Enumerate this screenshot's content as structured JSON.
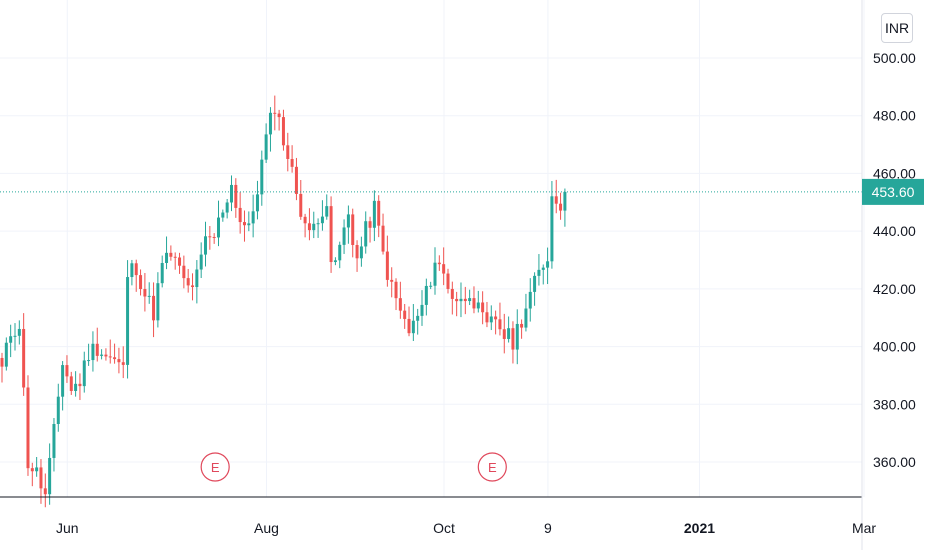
{
  "currency": "INR",
  "last_price_label": "453.60",
  "colors": {
    "up": "#26a69a",
    "down": "#ef5350",
    "grid": "#f0f3fa",
    "axis": "#131722",
    "event": "#e0485b"
  },
  "chart_data": {
    "type": "candlestick",
    "title": "",
    "xlabel": "",
    "ylabel": "",
    "ylim": [
      345,
      509
    ],
    "grid": true,
    "y_ticks": [
      "360.00",
      "380.00",
      "400.00",
      "420.00",
      "440.00",
      "460.00",
      "480.00",
      "500.00"
    ],
    "x_ticks": [
      {
        "label": "Jun",
        "index": 10,
        "bold": false
      },
      {
        "label": "Aug",
        "index": 56,
        "bold": false
      },
      {
        "label": "Oct",
        "index": 97,
        "bold": false
      },
      {
        "label": "9",
        "index": 121,
        "bold": false
      },
      {
        "label": "2021",
        "index": 156,
        "bold": true
      },
      {
        "label": "Mar",
        "index": 194,
        "bold": false
      }
    ],
    "last_price": 453.6,
    "events": [
      {
        "label": "E",
        "index": 49
      },
      {
        "label": "E",
        "index": 113
      }
    ],
    "anchors": [
      [
        0,
        392
      ],
      [
        2,
        405
      ],
      [
        4,
        408
      ],
      [
        6,
        360
      ],
      [
        8,
        356
      ],
      [
        10,
        348
      ],
      [
        12,
        370
      ],
      [
        14,
        395
      ],
      [
        16,
        385
      ],
      [
        18,
        388
      ],
      [
        20,
        398
      ],
      [
        22,
        400
      ],
      [
        24,
        397
      ],
      [
        26,
        395
      ],
      [
        28,
        392
      ],
      [
        29,
        425
      ],
      [
        31,
        428
      ],
      [
        33,
        418
      ],
      [
        35,
        412
      ],
      [
        37,
        428
      ],
      [
        39,
        432
      ],
      [
        41,
        426
      ],
      [
        43,
        420
      ],
      [
        45,
        424
      ],
      [
        47,
        436
      ],
      [
        49,
        438
      ],
      [
        51,
        448
      ],
      [
        53,
        456
      ],
      [
        55,
        444
      ],
      [
        57,
        440
      ],
      [
        59,
        455
      ],
      [
        61,
        472
      ],
      [
        63,
        484
      ],
      [
        65,
        472
      ],
      [
        67,
        460
      ],
      [
        69,
        448
      ],
      [
        71,
        438
      ],
      [
        73,
        446
      ],
      [
        75,
        450
      ],
      [
        76,
        426
      ],
      [
        78,
        434
      ],
      [
        80,
        446
      ],
      [
        82,
        430
      ],
      [
        84,
        440
      ],
      [
        86,
        448
      ],
      [
        88,
        432
      ],
      [
        90,
        420
      ],
      [
        92,
        412
      ],
      [
        94,
        405
      ],
      [
        96,
        410
      ],
      [
        98,
        418
      ],
      [
        100,
        430
      ],
      [
        102,
        425
      ],
      [
        104,
        418
      ],
      [
        106,
        415
      ],
      [
        108,
        420
      ],
      [
        110,
        412
      ],
      [
        112,
        406
      ],
      [
        114,
        410
      ],
      [
        116,
        404
      ],
      [
        118,
        402
      ],
      [
        120,
        410
      ],
      [
        122,
        418
      ],
      [
        124,
        425
      ],
      [
        126,
        432
      ],
      [
        127,
        452
      ],
      [
        129,
        450
      ],
      [
        130,
        453.6
      ]
    ]
  }
}
